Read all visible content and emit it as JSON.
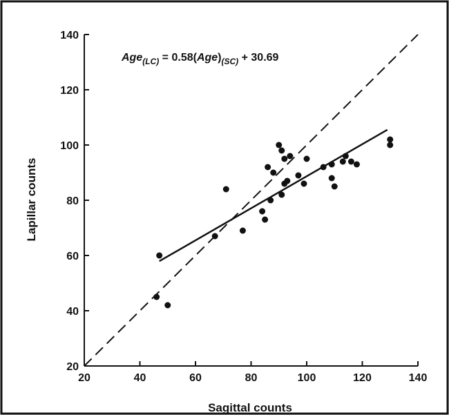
{
  "chart_data": {
    "type": "scatter",
    "xlabel": "Sagittal counts",
    "ylabel": "Lapillar counts",
    "xlim": [
      20,
      140
    ],
    "ylim": [
      20,
      140
    ],
    "xticks": [
      20,
      40,
      60,
      80,
      100,
      120,
      140
    ],
    "yticks": [
      20,
      40,
      60,
      80,
      100,
      120,
      140
    ],
    "grid": false,
    "annotation": {
      "lhs": "Age",
      "lhs_sub": "(LC)",
      "mid": " = 0.58(",
      "mid2": "Age",
      "mid3": ")",
      "rhs_sub": "(SC)",
      "rhs": " + 30.69"
    },
    "points": [
      {
        "x": 46,
        "y": 45
      },
      {
        "x": 47,
        "y": 60
      },
      {
        "x": 50,
        "y": 42
      },
      {
        "x": 67,
        "y": 67
      },
      {
        "x": 71,
        "y": 84
      },
      {
        "x": 77,
        "y": 69
      },
      {
        "x": 84,
        "y": 76
      },
      {
        "x": 85,
        "y": 73
      },
      {
        "x": 86,
        "y": 92
      },
      {
        "x": 87,
        "y": 80
      },
      {
        "x": 88,
        "y": 90
      },
      {
        "x": 90,
        "y": 100
      },
      {
        "x": 91,
        "y": 98
      },
      {
        "x": 91,
        "y": 82
      },
      {
        "x": 92,
        "y": 95
      },
      {
        "x": 92,
        "y": 86
      },
      {
        "x": 93,
        "y": 87
      },
      {
        "x": 94,
        "y": 96
      },
      {
        "x": 97,
        "y": 89
      },
      {
        "x": 99,
        "y": 86
      },
      {
        "x": 100,
        "y": 95
      },
      {
        "x": 106,
        "y": 92
      },
      {
        "x": 109,
        "y": 93
      },
      {
        "x": 109,
        "y": 88
      },
      {
        "x": 110,
        "y": 85
      },
      {
        "x": 113,
        "y": 94
      },
      {
        "x": 114,
        "y": 96
      },
      {
        "x": 116,
        "y": 94
      },
      {
        "x": 118,
        "y": 93
      },
      {
        "x": 130,
        "y": 102
      },
      {
        "x": 130,
        "y": 100
      }
    ],
    "regression_line": {
      "slope": 0.58,
      "intercept": 30.69,
      "x_range": [
        47,
        129
      ]
    },
    "identity_line": {
      "x_range": [
        20,
        140
      ],
      "style": "dashed"
    }
  }
}
